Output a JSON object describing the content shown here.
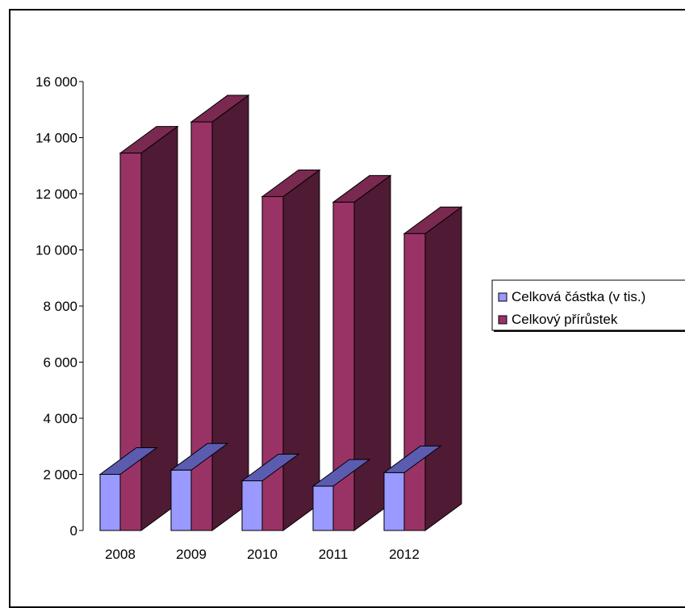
{
  "chart_data": {
    "type": "bar",
    "style": "3d-clustered",
    "categories": [
      "2008",
      "2009",
      "2010",
      "2011",
      "2012"
    ],
    "series": [
      {
        "name": "Celková částka (v tis.)",
        "values": [
          2000,
          2150,
          1770,
          1580,
          2060
        ],
        "color": "#9999ff",
        "top_color": "#5b5bb0",
        "side_color": "#5b5bb0"
      },
      {
        "name": "Celkový přírůstek",
        "values": [
          13450,
          14560,
          11900,
          11700,
          10580
        ],
        "color": "#993366",
        "top_color": "#7a2950",
        "side_color": "#4f1a33"
      }
    ],
    "y_ticks": [
      "0",
      "2 000",
      "4 000",
      "6 000",
      "8 000",
      "10 000",
      "12 000",
      "14 000",
      "16 000"
    ],
    "ylim": [
      0,
      16000
    ],
    "grid": false,
    "legend_position": "right",
    "title": "",
    "xlabel": "",
    "ylabel": ""
  }
}
